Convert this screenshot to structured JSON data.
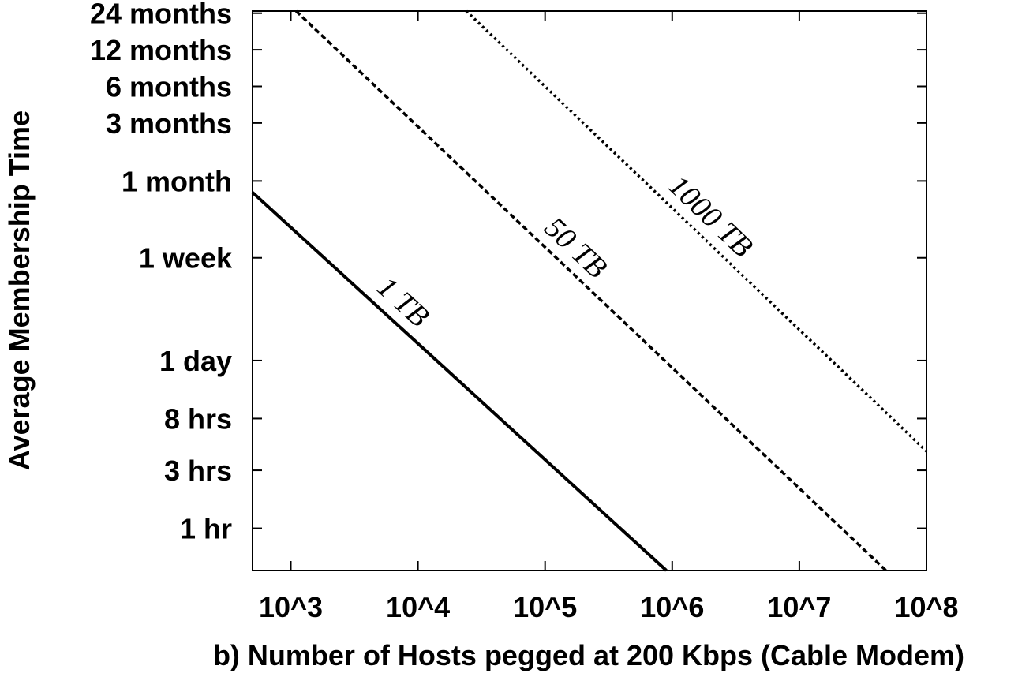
{
  "chart_data": {
    "type": "line",
    "title": "",
    "xlabel": "b) Number of Hosts pegged at 200 Kbps (Cable Modem)",
    "ylabel": "Average Membership Time",
    "x_scale": "log",
    "y_scale": "log",
    "xlim": [
      500,
      100000000
    ],
    "ylim_hours": [
      0.45,
      18000
    ],
    "grid": false,
    "legend": "none",
    "x_ticks": [
      {
        "value": 1000,
        "label": "10^3"
      },
      {
        "value": 10000,
        "label": "10^4"
      },
      {
        "value": 100000,
        "label": "10^5"
      },
      {
        "value": 1000000,
        "label": "10^6"
      },
      {
        "value": 10000000,
        "label": "10^7"
      },
      {
        "value": 100000000,
        "label": "10^8"
      }
    ],
    "y_ticks": [
      {
        "value_hours": 1,
        "label": "1 hr"
      },
      {
        "value_hours": 3,
        "label": "3 hrs"
      },
      {
        "value_hours": 8,
        "label": "8 hrs"
      },
      {
        "value_hours": 24,
        "label": "1 day"
      },
      {
        "value_hours": 168,
        "label": "1 week"
      },
      {
        "value_hours": 720,
        "label": "1 month"
      },
      {
        "value_hours": 2160,
        "label": "3 months"
      },
      {
        "value_hours": 4320,
        "label": "6 months"
      },
      {
        "value_hours": 8640,
        "label": "12 months"
      },
      {
        "value_hours": 17280,
        "label": "24 months"
      }
    ],
    "series": [
      {
        "name": "1 TB",
        "style": "solid",
        "x": [
          500,
          900000
        ],
        "y_hours": [
          580,
          0.45
        ]
      },
      {
        "name": "50 TB",
        "style": "dashed",
        "x": [
          1100,
          48000000
        ],
        "y_hours": [
          18000,
          0.45
        ]
      },
      {
        "name": "1000 TB",
        "style": "dotted",
        "x": [
          24000,
          100000000
        ],
        "y_hours": [
          18000,
          4.3
        ]
      }
    ]
  }
}
